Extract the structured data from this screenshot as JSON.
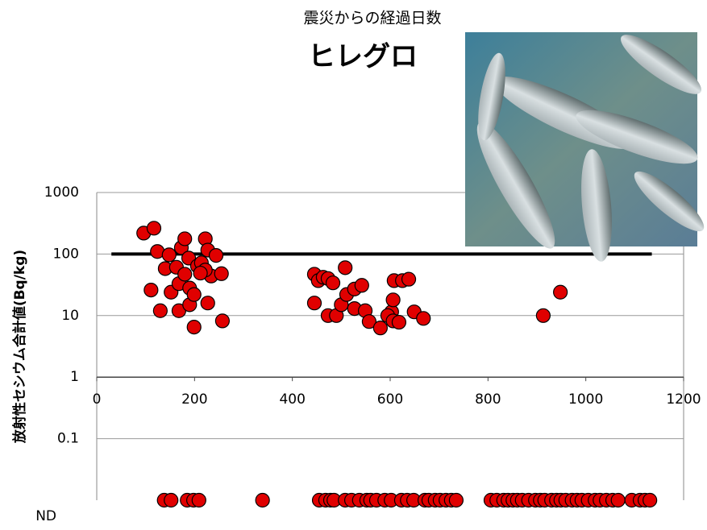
{
  "chart_data": {
    "type": "scatter",
    "title": "ヒレグロ",
    "x_label": "震災からの経過日数",
    "y_label": "放射性セシウム合計値(Bq/kg)",
    "log_y": true,
    "grid": true,
    "x_axis_at": 1,
    "xlim": [
      0,
      1200
    ],
    "xticks": [
      0,
      200,
      400,
      600,
      800,
      1000,
      1200
    ],
    "ylim": [
      0.01,
      1000
    ],
    "yticks": [
      {
        "value": 0.01,
        "label": "ND"
      },
      0.1,
      1,
      10,
      100,
      1000
    ],
    "reference_line": {
      "value": 100,
      "x": [
        30,
        1135
      ],
      "color": "#000000"
    },
    "series": [
      {
        "color": "#e00000",
        "x": [
          96,
          117,
          124,
          148,
          140,
          111,
          130,
          152,
          173,
          180,
          188,
          163,
          168,
          180,
          190,
          168,
          190,
          199,
          199,
          206,
          214,
          222,
          227,
          234,
          222,
          212,
          244,
          227,
          255,
          257,
          445,
          453,
          463,
          473,
          483,
          445,
          473,
          490,
          500,
          511,
          508,
          527,
          542,
          527,
          549,
          557,
          580,
          603,
          608,
          606,
          595,
          606,
          618,
          625,
          638,
          649,
          668,
          913,
          948
        ],
        "values": [
          219,
          263,
          110,
          97,
          58,
          26,
          12,
          24,
          127,
          177,
          86,
          61,
          33,
          47,
          28,
          12,
          15,
          22,
          6.5,
          64,
          72,
          177,
          116,
          44,
          55,
          49,
          95,
          16,
          48,
          8.2,
          47,
          37,
          42,
          40,
          34,
          16,
          10,
          10,
          15,
          22,
          60,
          27,
          31,
          13,
          12,
          8,
          6.3,
          11.5,
          37,
          18,
          10,
          8.2,
          7.8,
          37,
          39,
          11.5,
          9,
          10,
          24
        ]
      },
      {
        "color": "#e00000",
        "not_detected": true,
        "x": [
          138,
          152,
          185,
          198,
          209,
          339,
          455,
          468,
          478,
          485,
          508,
          521,
          537,
          552,
          560,
          572,
          589,
          602,
          623,
          635,
          648,
          671,
          679,
          692,
          702,
          714,
          725,
          735,
          806,
          818,
          832,
          841,
          851,
          860,
          870,
          883,
          897,
          907,
          916,
          930,
          940,
          949,
          959,
          972,
          982,
          992,
          1005,
          1019,
          1029,
          1042,
          1055,
          1066,
          1094,
          1111,
          1121,
          1131
        ]
      }
    ]
  }
}
